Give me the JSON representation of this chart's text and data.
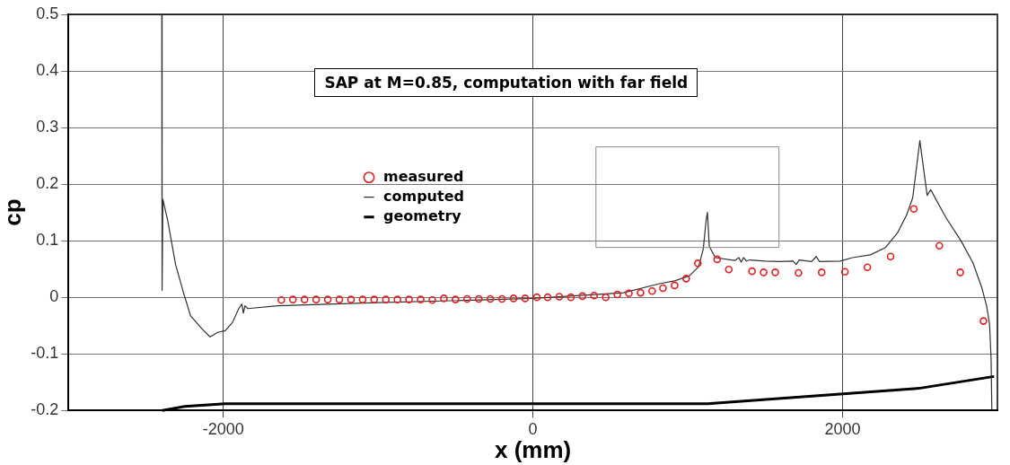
{
  "chart_data": {
    "type": "line",
    "xlabel": "x (mm)",
    "ylabel": "cp",
    "xlim": [
      -3000,
      3000
    ],
    "ylim": [
      -0.2,
      0.5
    ],
    "xticks": [
      -2000,
      0,
      2000
    ],
    "yticks": [
      {
        "value": -0.2,
        "label": "-0.2"
      },
      {
        "value": -0.1,
        "label": "-0.1"
      },
      0,
      {
        "value": 0.1,
        "label": "0.1"
      },
      {
        "value": 0.2,
        "label": "0.2"
      },
      {
        "value": 0.3,
        "label": "0.3"
      },
      {
        "value": 0.4,
        "label": "0.4"
      },
      {
        "value": 0.5,
        "label": "0.5"
      }
    ],
    "grid": true,
    "legend": "top left",
    "annotations": [
      "SAP at M=0.85, computation with far field"
    ],
    "series": [
      {
        "name": "measured",
        "type": "scatter",
        "marker": "circle",
        "color": "#e02020",
        "x": [
          -1625,
          -1550,
          -1475,
          -1400,
          -1325,
          -1250,
          -1175,
          -1100,
          -1025,
          -950,
          -875,
          -800,
          -725,
          -650,
          -575,
          -500,
          -425,
          -350,
          -275,
          -200,
          -125,
          -50,
          25,
          95,
          170,
          245,
          320,
          395,
          470,
          545,
          620,
          695,
          770,
          840,
          915,
          990,
          1065,
          1190,
          1265,
          1415,
          1490,
          1565,
          1715,
          1865,
          2015,
          2160,
          2310,
          2460,
          2625,
          2760,
          2910
        ],
        "values": [
          -0.005,
          -0.004,
          -0.004,
          -0.004,
          -0.004,
          -0.004,
          -0.004,
          -0.004,
          -0.004,
          -0.004,
          -0.004,
          -0.004,
          -0.004,
          -0.005,
          -0.002,
          -0.004,
          -0.003,
          -0.003,
          -0.003,
          -0.003,
          -0.002,
          -0.002,
          0,
          0,
          0.001,
          0,
          0.002,
          0.003,
          0,
          0.005,
          0.007,
          0.008,
          0.011,
          0.016,
          0.021,
          0.033,
          0.06,
          0.067,
          0.049,
          0.046,
          0.044,
          0.044,
          0.043,
          0.044,
          0.045,
          0.053,
          0.072,
          0.156,
          0.091,
          0.044,
          -0.042
        ]
      },
      {
        "name": "computed",
        "color": "#303030",
        "x": [
          -2397,
          -2395,
          -2390,
          -2359,
          -2308,
          -2260,
          -2211,
          -2133,
          -2085,
          -2036,
          -1987,
          -1939,
          -1900,
          -1880,
          -1870,
          -1860,
          -1841,
          -1647,
          -1051,
          0,
          584,
          818,
          915,
          1012,
          1070,
          1100,
          1119,
          1127,
          1139,
          1178,
          1304,
          1330,
          1345,
          1360,
          1380,
          1400,
          1500,
          1596,
          1680,
          1700,
          1720,
          1800,
          1830,
          1850,
          1985,
          2063,
          2180,
          2277,
          2355,
          2413,
          2453,
          2499,
          2546,
          2569,
          2667,
          2764,
          2842,
          2900,
          2930,
          2949,
          2959,
          2964
        ],
        "values": [
          0.5,
          0.012,
          0.173,
          0.136,
          0.058,
          0.011,
          -0.033,
          -0.057,
          -0.07,
          -0.062,
          -0.059,
          -0.044,
          -0.02,
          -0.012,
          -0.028,
          -0.015,
          -0.02,
          -0.015,
          -0.01,
          -0.002,
          0.008,
          0.024,
          0.029,
          0.038,
          0.054,
          0.085,
          0.137,
          0.15,
          0.09,
          0.07,
          0.065,
          0.07,
          0.062,
          0.07,
          0.064,
          0.066,
          0.064,
          0.063,
          0.064,
          0.058,
          0.066,
          0.063,
          0.072,
          0.063,
          0.064,
          0.07,
          0.075,
          0.088,
          0.114,
          0.145,
          0.176,
          0.277,
          0.18,
          0.19,
          0.141,
          0.1,
          0.061,
          0.016,
          -0.015,
          -0.047,
          -0.108,
          -0.2
        ]
      },
      {
        "name": "geometry",
        "color": "#000000",
        "x": [
          -2394,
          -2248,
          -1987,
          1127,
          2492,
          2978
        ],
        "values": [
          -0.2,
          -0.193,
          -0.188,
          -0.188,
          -0.161,
          -0.14
        ]
      }
    ]
  }
}
